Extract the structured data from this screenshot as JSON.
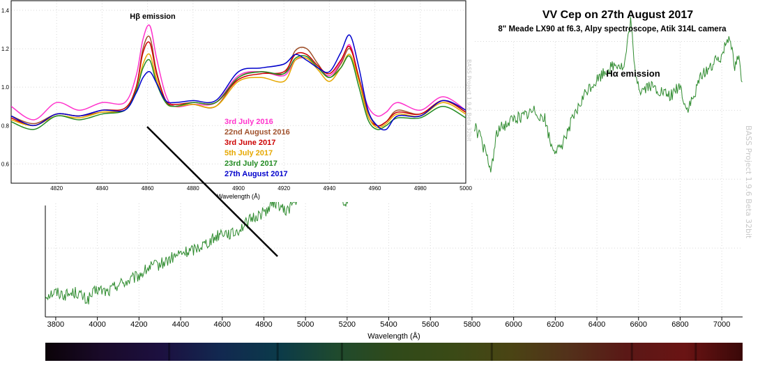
{
  "header": {
    "title": "VV Cep on 27th August 2017",
    "subtitle": "8\" Meade LX90 at f6.3,  Alpy spectroscope, Atik 314L camera"
  },
  "watermark": "BASS Project 1.9.6 Beta 32bit",
  "chart_data": [
    {
      "type": "line",
      "title": "Hα emission",
      "xlabel": "Wavelength (Å)",
      "ylabel": "",
      "xlim": [
        3750,
        7100
      ],
      "grid": true,
      "xticks": [
        3800,
        4000,
        4200,
        4400,
        4600,
        4800,
        5000,
        5200,
        5400,
        5600,
        5800,
        6000,
        6200,
        6400,
        6600,
        6800,
        7000
      ],
      "series": [
        {
          "color": "#2e8b2e",
          "x": [
            3750,
            3800,
            3850,
            3900,
            3950,
            4000,
            4050,
            4100,
            4150,
            4200,
            4250,
            4300,
            4350,
            4400,
            4450,
            4500,
            4550,
            4600,
            4650,
            4700,
            4750,
            4800,
            4861,
            4900,
            4950,
            5000,
            5050,
            5100,
            5150,
            5190,
            5230,
            5300,
            5350,
            5400,
            5450,
            5500,
            5550,
            5600,
            5650,
            5700,
            5750,
            5800,
            5840,
            5870,
            5890,
            5920,
            5960,
            6000,
            6050,
            6100,
            6150,
            6180,
            6220,
            6260,
            6300,
            6350,
            6400,
            6450,
            6500,
            6530,
            6563,
            6580,
            6610,
            6650,
            6700,
            6750,
            6800,
            6830,
            6870,
            6900,
            6950,
            7000,
            7020,
            7040,
            7060,
            7080,
            7100
          ],
          "y": [
            0.08,
            0.09,
            0.08,
            0.09,
            0.06,
            0.1,
            0.09,
            0.12,
            0.13,
            0.15,
            0.18,
            0.19,
            0.21,
            0.23,
            0.24,
            0.26,
            0.28,
            0.31,
            0.3,
            0.33,
            0.36,
            0.38,
            0.42,
            0.38,
            0.42,
            0.45,
            0.49,
            0.5,
            0.5,
            0.4,
            0.5,
            0.53,
            0.55,
            0.53,
            0.55,
            0.57,
            0.59,
            0.6,
            0.62,
            0.61,
            0.62,
            0.71,
            0.65,
            0.58,
            0.53,
            0.67,
            0.7,
            0.72,
            0.73,
            0.75,
            0.72,
            0.62,
            0.6,
            0.68,
            0.74,
            0.82,
            0.86,
            0.9,
            0.92,
            0.9,
            1.08,
            0.9,
            0.82,
            0.84,
            0.82,
            0.8,
            0.84,
            0.75,
            0.8,
            0.88,
            0.91,
            0.95,
            1.0,
            1.03,
            0.9,
            0.95,
            0.83
          ]
        }
      ]
    },
    {
      "type": "line",
      "title": "Hβ emission",
      "xlabel": "Wavelength (Å)",
      "ylabel": "",
      "xlim": [
        4800,
        5000
      ],
      "ylim": [
        0.5,
        1.45
      ],
      "grid": true,
      "xticks": [
        4820,
        4840,
        4860,
        4880,
        4900,
        4920,
        4940,
        4960,
        4980,
        5000
      ],
      "yticks": [
        0.6,
        0.8,
        1.0,
        1.2,
        1.4
      ],
      "legend": "center",
      "series": [
        {
          "name": "3rd July 2016",
          "color": "#ff33cc",
          "x": [
            4800,
            4810,
            4820,
            4830,
            4840,
            4850,
            4855,
            4858,
            4861,
            4864,
            4868,
            4872,
            4880,
            4890,
            4900,
            4910,
            4920,
            4925,
            4930,
            4935,
            4940,
            4945,
            4949,
            4953,
            4957,
            4961,
            4965,
            4970,
            4980,
            4990,
            5000
          ],
          "y": [
            0.9,
            0.83,
            0.92,
            0.88,
            0.92,
            0.92,
            1.06,
            1.25,
            1.32,
            1.15,
            0.96,
            0.9,
            0.91,
            0.92,
            1.06,
            1.08,
            1.06,
            1.14,
            1.15,
            1.1,
            1.06,
            1.13,
            1.22,
            1.05,
            0.9,
            0.85,
            0.87,
            0.92,
            0.88,
            0.95,
            0.88
          ]
        },
        {
          "name": "22nd August 2016",
          "color": "#a0522d",
          "x": [
            4800,
            4810,
            4820,
            4830,
            4840,
            4850,
            4855,
            4858,
            4861,
            4864,
            4868,
            4872,
            4880,
            4890,
            4900,
            4910,
            4920,
            4925,
            4930,
            4935,
            4940,
            4945,
            4949,
            4953,
            4957,
            4961,
            4965,
            4970,
            4980,
            4990,
            5000
          ],
          "y": [
            0.85,
            0.81,
            0.86,
            0.85,
            0.87,
            0.88,
            1.0,
            1.2,
            1.26,
            1.08,
            0.93,
            0.9,
            0.91,
            0.9,
            1.05,
            1.08,
            1.07,
            1.19,
            1.2,
            1.12,
            1.05,
            1.12,
            1.2,
            1.05,
            0.87,
            0.8,
            0.82,
            0.88,
            0.86,
            0.93,
            0.87
          ]
        },
        {
          "name": "3rd June 2017",
          "color": "#cc0000",
          "x": [
            4800,
            4810,
            4820,
            4830,
            4840,
            4850,
            4855,
            4858,
            4861,
            4864,
            4868,
            4872,
            4880,
            4890,
            4900,
            4910,
            4920,
            4925,
            4930,
            4935,
            4940,
            4945,
            4949,
            4953,
            4957,
            4961,
            4965,
            4970,
            4980,
            4990,
            5000
          ],
          "y": [
            0.84,
            0.8,
            0.86,
            0.85,
            0.88,
            0.89,
            1.0,
            1.18,
            1.23,
            1.07,
            0.93,
            0.91,
            0.92,
            0.92,
            1.04,
            1.07,
            1.08,
            1.17,
            1.17,
            1.11,
            1.07,
            1.14,
            1.21,
            1.04,
            0.85,
            0.8,
            0.82,
            0.87,
            0.86,
            0.93,
            0.87
          ]
        },
        {
          "name": "5th July 2017",
          "color": "#e6a800",
          "x": [
            4800,
            4810,
            4820,
            4830,
            4840,
            4850,
            4855,
            4858,
            4861,
            4864,
            4868,
            4872,
            4880,
            4890,
            4900,
            4910,
            4920,
            4925,
            4930,
            4935,
            4940,
            4945,
            4949,
            4953,
            4957,
            4961,
            4965,
            4970,
            4980,
            4990,
            5000
          ],
          "y": [
            0.83,
            0.8,
            0.85,
            0.84,
            0.87,
            0.88,
            0.98,
            1.12,
            1.17,
            1.04,
            0.92,
            0.9,
            0.91,
            0.9,
            1.03,
            1.05,
            1.03,
            1.14,
            1.15,
            1.09,
            1.03,
            1.1,
            1.17,
            1.03,
            0.85,
            0.79,
            0.81,
            0.86,
            0.85,
            0.92,
            0.86
          ]
        },
        {
          "name": "23rd July 2017",
          "color": "#228b22",
          "x": [
            4800,
            4810,
            4820,
            4830,
            4840,
            4850,
            4855,
            4858,
            4861,
            4864,
            4868,
            4872,
            4880,
            4890,
            4900,
            4910,
            4920,
            4925,
            4930,
            4935,
            4940,
            4945,
            4949,
            4953,
            4957,
            4961,
            4965,
            4970,
            4980,
            4990,
            5000
          ],
          "y": [
            0.82,
            0.78,
            0.85,
            0.83,
            0.86,
            0.88,
            0.98,
            1.1,
            1.14,
            1.02,
            0.92,
            0.9,
            0.92,
            0.92,
            1.05,
            1.08,
            1.07,
            1.15,
            1.16,
            1.1,
            1.05,
            1.1,
            1.16,
            1.0,
            0.83,
            0.78,
            0.8,
            0.84,
            0.84,
            0.9,
            0.84
          ]
        },
        {
          "name": "27th August 2017",
          "color": "#0000cc",
          "x": [
            4800,
            4810,
            4820,
            4830,
            4840,
            4850,
            4855,
            4858,
            4861,
            4864,
            4868,
            4872,
            4880,
            4890,
            4900,
            4910,
            4920,
            4925,
            4930,
            4935,
            4940,
            4945,
            4949,
            4953,
            4957,
            4961,
            4965,
            4970,
            4980,
            4990,
            5000
          ],
          "y": [
            0.85,
            0.8,
            0.86,
            0.85,
            0.88,
            0.88,
            0.97,
            1.05,
            1.08,
            1.02,
            0.93,
            0.92,
            0.93,
            0.93,
            1.08,
            1.1,
            1.12,
            1.17,
            1.14,
            1.1,
            1.08,
            1.18,
            1.27,
            1.1,
            0.88,
            0.8,
            0.78,
            0.85,
            0.85,
            0.93,
            0.88
          ]
        }
      ]
    }
  ],
  "spectrum_strip": {
    "stops": [
      "#0b0308",
      "#1a0a2a",
      "#1c1040",
      "#122850",
      "#0b3a4a",
      "#1f4a2e",
      "#304a1a",
      "#3a4a16",
      "#4a4414",
      "#53311a",
      "#5a1816",
      "#6a1414",
      "#3a0808"
    ]
  },
  "pointer_line": {
    "from_wavelength_hb_panel": 4861,
    "to_wavelength_main": 4861
  }
}
